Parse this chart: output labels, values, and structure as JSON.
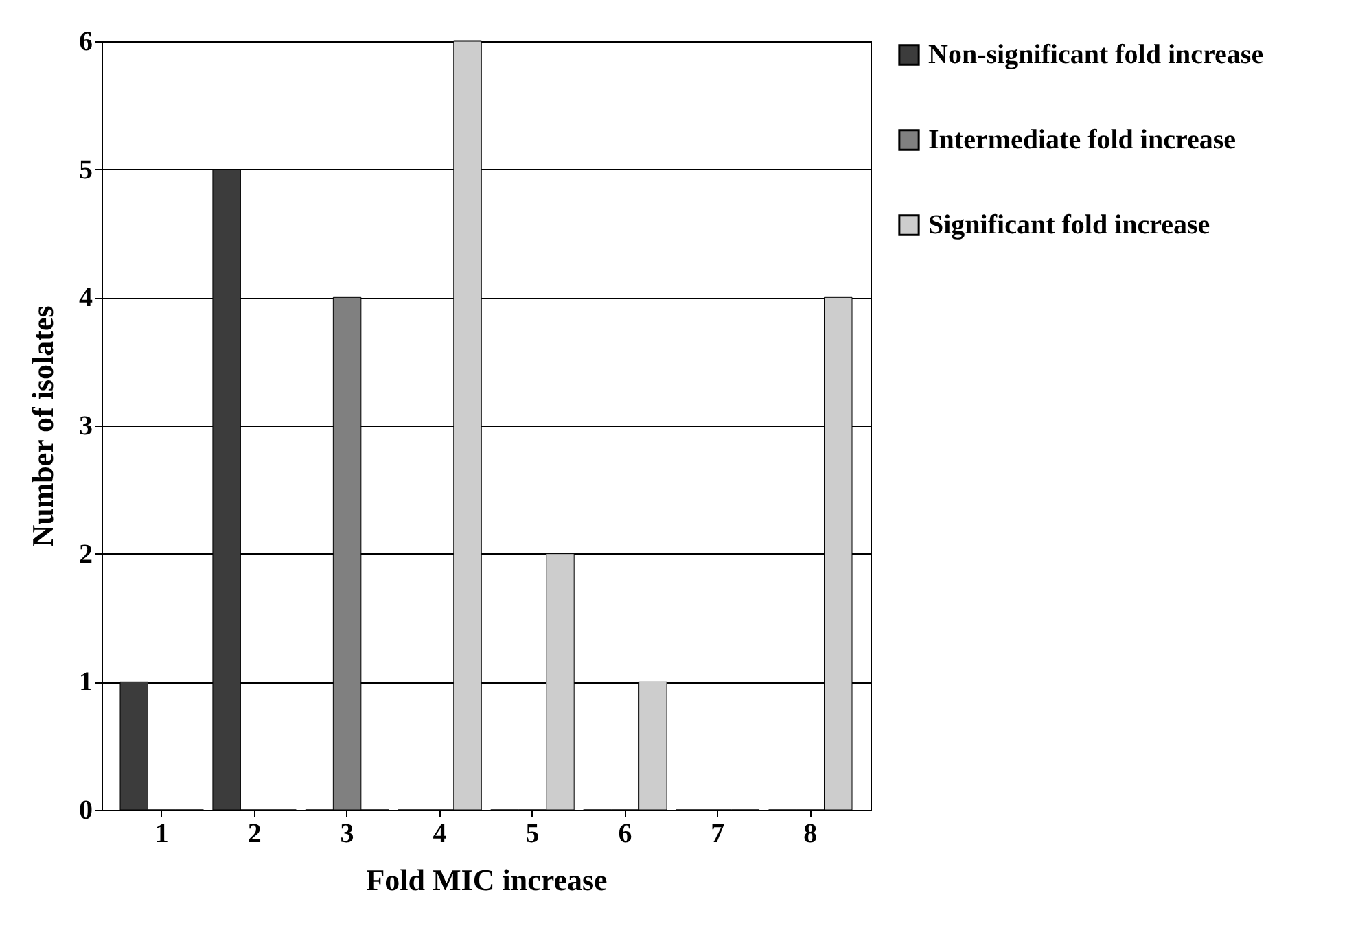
{
  "chart_data": {
    "type": "bar",
    "xlabel": "Fold MIC increase",
    "ylabel": "Number of isolates",
    "categories": [
      "1",
      "2",
      "3",
      "4",
      "5",
      "6",
      "7",
      "8"
    ],
    "series": [
      {
        "name": "Non-significant fold increase",
        "color": "#3c3c3c",
        "values": [
          1,
          5,
          0,
          0,
          0,
          0,
          0,
          0
        ]
      },
      {
        "name": "Intermediate fold increase",
        "color": "#808080",
        "values": [
          0,
          0,
          4,
          0,
          0,
          0,
          0,
          0
        ]
      },
      {
        "name": "Significant fold increase",
        "color": "#cdcdcd",
        "values": [
          0,
          0,
          0,
          6,
          2,
          1,
          0,
          4
        ]
      }
    ],
    "ylim": [
      0,
      6
    ],
    "yticks": [
      0,
      1,
      2,
      3,
      4,
      5,
      6
    ],
    "grid": "y",
    "legend": "right"
  }
}
